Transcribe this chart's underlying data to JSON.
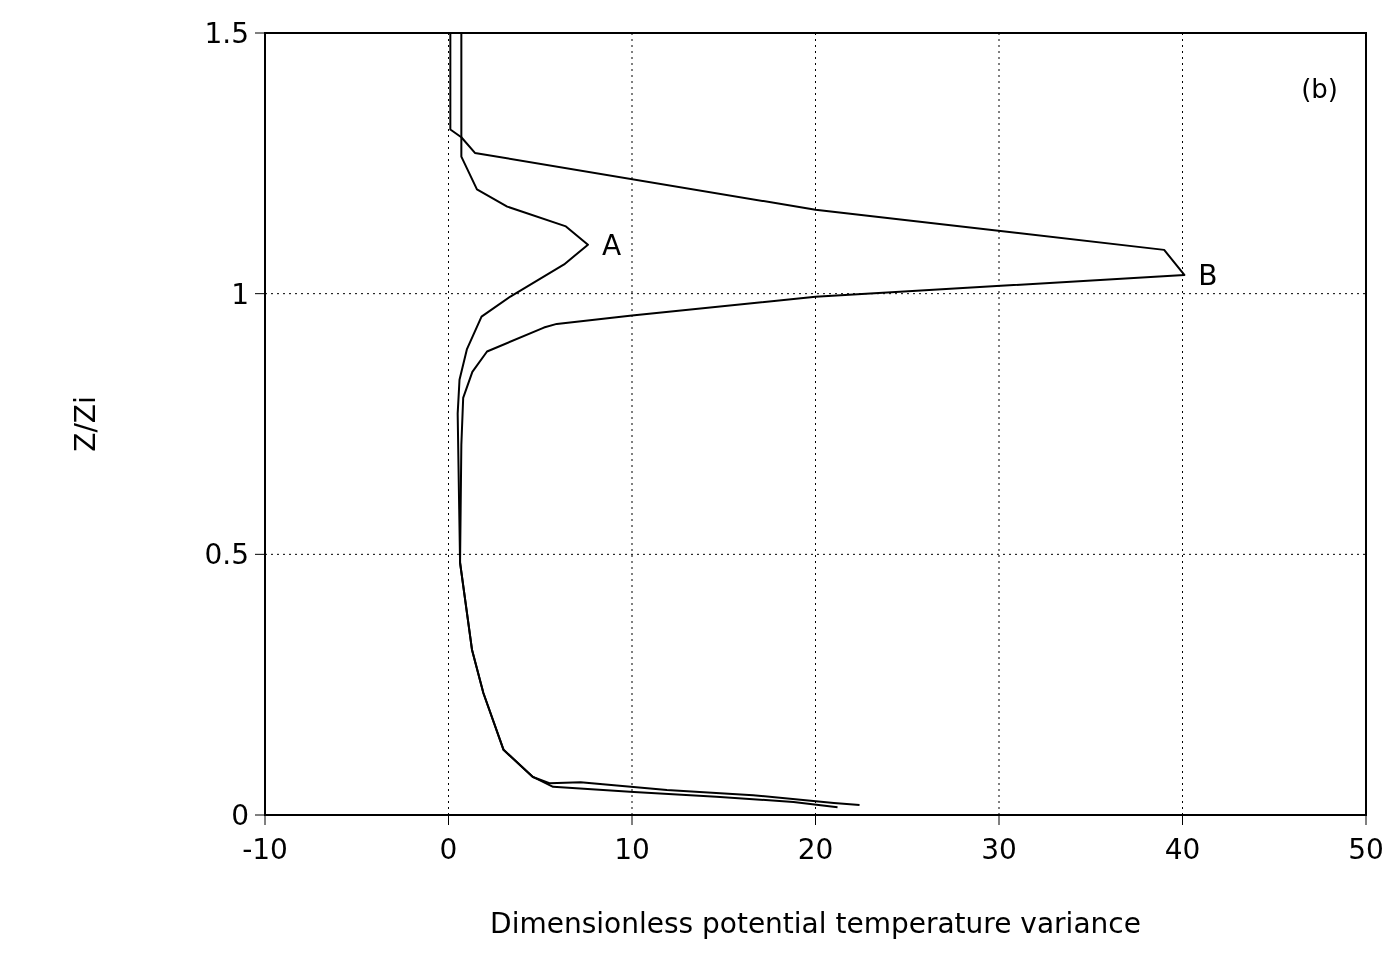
{
  "chart_data": {
    "type": "line",
    "xlabel": "Dimensionless potential temperature variance",
    "ylabel": "Z/Zi",
    "xlim": [
      -10,
      50
    ],
    "xticks": [
      -10,
      0,
      10,
      20,
      30,
      40,
      50
    ],
    "ylim": [
      0,
      1.5
    ],
    "yticks": [
      0,
      0.5,
      1,
      1.5
    ],
    "grid": true,
    "marker": "none",
    "line_style": "solid",
    "annotations": [
      "(b)",
      {
        "text": "A",
        "x": 7.6,
        "y": 1.094
      },
      {
        "text": "B",
        "x": 40.1,
        "y": 1.036
      }
    ],
    "series": [
      {
        "color": "#000000",
        "x": [
          0.7,
          0.7,
          1.55,
          3.2,
          6.4,
          7.6,
          6.3,
          3.35,
          1.8,
          1.0,
          0.6,
          0.5,
          0.63,
          1.28,
          1.9,
          3.0,
          4.6,
          5.5,
          7.2,
          11.9,
          16.6,
          21,
          22.4
        ],
        "values": [
          1.5,
          1.263,
          1.2,
          1.167,
          1.129,
          1.094,
          1.056,
          0.994,
          0.956,
          0.893,
          0.835,
          0.77,
          0.484,
          0.317,
          0.234,
          0.125,
          0.073,
          0.061,
          0.063,
          0.048,
          0.038,
          0.023,
          0.019
        ]
      },
      {
        "color": "#000000",
        "x": [
          0.1,
          0.1,
          0.7,
          1.44,
          20,
          39,
          40.1,
          30.1,
          20,
          10,
          5.9,
          5.2,
          2.1,
          1.3,
          0.8,
          0.7,
          0.63,
          1.28,
          1.9,
          3.0,
          4.6,
          5.7,
          10.1,
          14.6,
          18.8,
          21.2
        ],
        "values": [
          1.5,
          1.315,
          1.3,
          1.27,
          1.161,
          1.084,
          1.036,
          1.015,
          0.994,
          0.958,
          0.942,
          0.935,
          0.889,
          0.85,
          0.8,
          0.71,
          0.484,
          0.317,
          0.234,
          0.125,
          0.073,
          0.054,
          0.044,
          0.035,
          0.025,
          0.015
        ]
      }
    ]
  }
}
